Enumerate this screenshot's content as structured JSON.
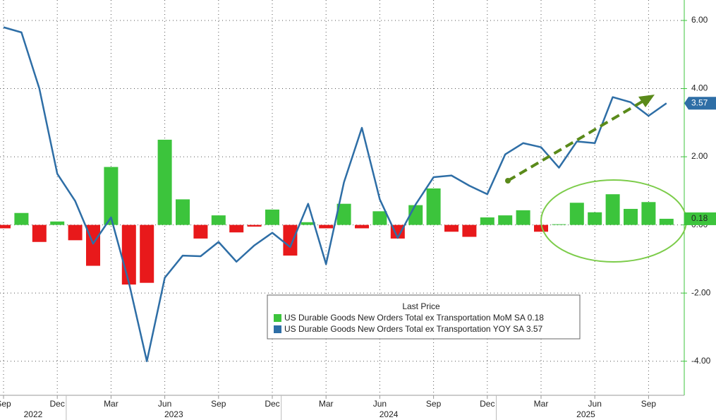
{
  "chart_data": {
    "type": "bar-line",
    "x": [
      "2022-09",
      "2022-10",
      "2022-11",
      "2022-12",
      "2023-01",
      "2023-02",
      "2023-03",
      "2023-04",
      "2023-05",
      "2023-06",
      "2023-07",
      "2023-08",
      "2023-09",
      "2023-10",
      "2023-11",
      "2023-12",
      "2024-01",
      "2024-02",
      "2024-03",
      "2024-04",
      "2024-05",
      "2024-06",
      "2024-07",
      "2024-08",
      "2024-09",
      "2024-10",
      "2024-11",
      "2024-12",
      "2025-01",
      "2025-02",
      "2025-03",
      "2025-04",
      "2025-05",
      "2025-06",
      "2025-07",
      "2025-08",
      "2025-09",
      "2025-10"
    ],
    "xticks": [
      {
        "value": "2022-09",
        "label": "Sep"
      },
      {
        "value": "2022-12",
        "label": "Dec"
      },
      {
        "value": "2023-03",
        "label": "Mar"
      },
      {
        "value": "2023-06",
        "label": "Jun"
      },
      {
        "value": "2023-09",
        "label": "Sep"
      },
      {
        "value": "2023-12",
        "label": "Dec"
      },
      {
        "value": "2024-03",
        "label": "Mar"
      },
      {
        "value": "2024-06",
        "label": "Jun"
      },
      {
        "value": "2024-09",
        "label": "Sep"
      },
      {
        "value": "2024-12",
        "label": "Dec"
      },
      {
        "value": "2025-03",
        "label": "Mar"
      },
      {
        "value": "2025-06",
        "label": "Jun"
      },
      {
        "value": "2025-09",
        "label": "Sep"
      }
    ],
    "years": [
      "2022",
      "2023",
      "2024",
      "2025"
    ],
    "legend_title": "Last Price",
    "series": [
      {
        "name": "US Durable Goods New Orders Total ex Transportation MoM SA",
        "type": "bar",
        "color": "#3cc43c",
        "negative_color": "#e8191b",
        "values": [
          -0.1,
          0.35,
          -0.5,
          0.1,
          -0.45,
          -1.2,
          1.7,
          -1.75,
          -1.7,
          2.5,
          0.75,
          -0.4,
          0.28,
          -0.22,
          -0.05,
          0.45,
          -0.9,
          0.08,
          -0.1,
          0.62,
          -0.1,
          0.4,
          -0.4,
          0.58,
          1.07,
          -0.2,
          -0.35,
          0.22,
          0.28,
          0.43,
          -0.2,
          0.02,
          0.65,
          0.37,
          0.9,
          0.47,
          0.67,
          0.18
        ]
      },
      {
        "name": "US Durable Goods New Orders Total ex Transportation YOY SA",
        "type": "line",
        "color": "#2e6ea6",
        "values": [
          5.8,
          5.65,
          4.0,
          1.5,
          0.7,
          -0.55,
          0.22,
          -1.7,
          -4.0,
          -1.55,
          -0.9,
          -0.92,
          -0.5,
          -1.08,
          -0.6,
          -0.23,
          -0.65,
          0.62,
          -1.15,
          1.25,
          2.85,
          0.75,
          -0.38,
          0.6,
          1.4,
          1.45,
          1.15,
          0.9,
          2.07,
          2.4,
          2.28,
          1.68,
          2.45,
          2.4,
          3.75,
          3.6,
          3.2,
          3.57
        ]
      }
    ],
    "ylim": [
      -5,
      6.6
    ],
    "yticks": [
      {
        "value": 6,
        "label": "6.00"
      },
      {
        "value": 4,
        "label": "4.00"
      },
      {
        "value": 2,
        "label": "2.00"
      },
      {
        "value": 0,
        "label": "0.00"
      },
      {
        "value": -2,
        "label": "-2.00"
      },
      {
        "value": -4,
        "label": "-4.00"
      }
    ],
    "grid": true
  }
}
